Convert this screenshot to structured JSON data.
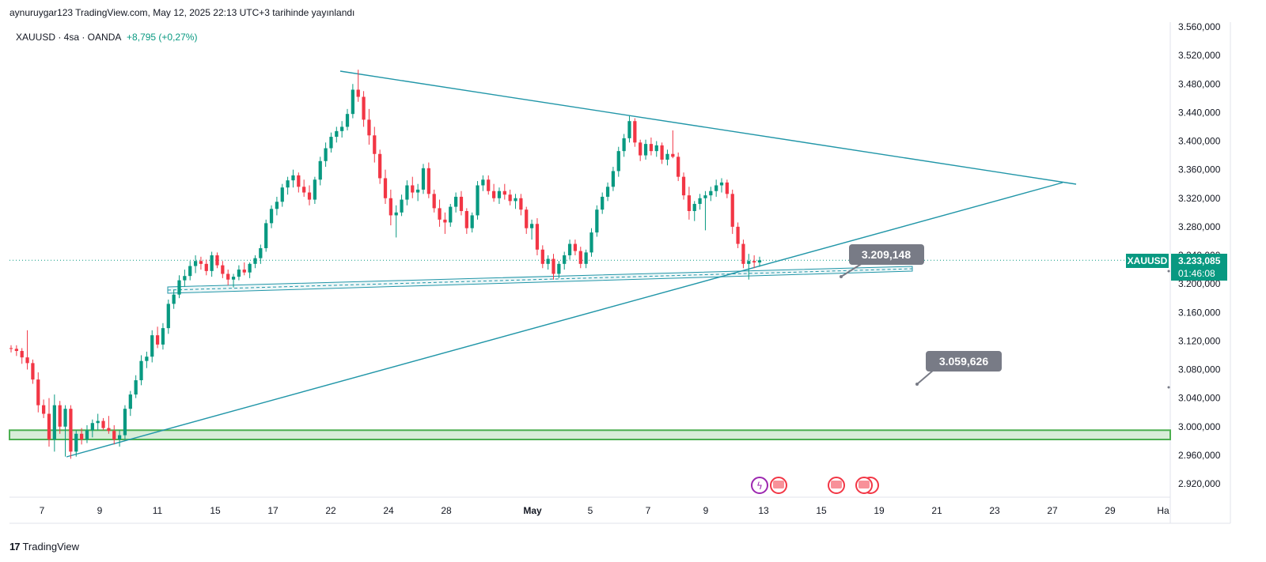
{
  "header": {
    "published_line": "aynuruygar123 TradingView.com, May 12, 2025 22:13 UTC+3 tarihinde yayınlandı",
    "symbol": "XAUUSD · 4sa · OANDA",
    "change": "+8,795 (+0,27%)"
  },
  "footer": {
    "logo_mark": "17",
    "logo_text": "TradingView"
  },
  "colors": {
    "up": "#089981",
    "down": "#f23645",
    "trendline": "#2196a8",
    "band": "#4caf50",
    "callout": "#787b86",
    "price_tag": "#089981"
  },
  "chart_data": {
    "type": "candlestick",
    "symbol": "XAUUSD",
    "timeframe": "4sa",
    "ylim": [
      2900,
      3570
    ],
    "y_ticks": [
      "3.560,000",
      "3.520,000",
      "3.480,000",
      "3.440,000",
      "3.400,000",
      "3.360,000",
      "3.320,000",
      "3.280,000",
      "3.240,000",
      "3.200,000",
      "3.160,000",
      "3.120,000",
      "3.080,000",
      "3.040,000",
      "3.000,000",
      "2.960,000",
      "2.920,000"
    ],
    "y_tick_values": [
      3560,
      3520,
      3480,
      3440,
      3400,
      3360,
      3320,
      3280,
      3240,
      3200,
      3160,
      3120,
      3080,
      3040,
      3000,
      2960,
      2920
    ],
    "x_ticks": [
      "7",
      "9",
      "11",
      "15",
      "17",
      "22",
      "24",
      "28",
      "May",
      "5",
      "7",
      "9",
      "13",
      "15",
      "19",
      "21",
      "23",
      "27",
      "29",
      "Ha"
    ],
    "current_price": {
      "symbol_tag": "XAUUSD",
      "price": "3.233,085",
      "countdown": "01:46:08",
      "value": 3233.085
    },
    "callouts": [
      {
        "label": "3.209,148",
        "value": 3209.148
      },
      {
        "label": "3.059,626",
        "value": 3059.626
      }
    ],
    "support_zone": [
      2982,
      2995
    ],
    "candles": [
      [
        3110,
        3114,
        3104,
        3109
      ],
      [
        3109,
        3114,
        3099,
        3106
      ],
      [
        3106,
        3110,
        3088,
        3097
      ],
      [
        3097,
        3135,
        3080,
        3089
      ],
      [
        3089,
        3094,
        3060,
        3066
      ],
      [
        3066,
        3076,
        3020,
        3030
      ],
      [
        3030,
        3038,
        3012,
        3018
      ],
      [
        3018,
        3040,
        2972,
        2982
      ],
      [
        2982,
        3045,
        2965,
        3030
      ],
      [
        3030,
        3036,
        2990,
        3000
      ],
      [
        3000,
        3030,
        2958,
        3025
      ],
      [
        3025,
        3030,
        2955,
        2965
      ],
      [
        2965,
        2995,
        2958,
        2990
      ],
      [
        2990,
        2998,
        2975,
        2982
      ],
      [
        2982,
        3002,
        2977,
        2995
      ],
      [
        2995,
        3010,
        2985,
        3005
      ],
      [
        3005,
        3018,
        2995,
        3008
      ],
      [
        3008,
        3012,
        2995,
        2998
      ],
      [
        2998,
        3015,
        2990,
        2994
      ],
      [
        2994,
        3002,
        2975,
        2982
      ],
      [
        2982,
        2995,
        2972,
        2988
      ],
      [
        2988,
        3030,
        2982,
        3025
      ],
      [
        3025,
        3050,
        3015,
        3045
      ],
      [
        3045,
        3072,
        3040,
        3065
      ],
      [
        3065,
        3100,
        3058,
        3092
      ],
      [
        3092,
        3105,
        3082,
        3098
      ],
      [
        3098,
        3135,
        3090,
        3128
      ],
      [
        3128,
        3140,
        3110,
        3115
      ],
      [
        3115,
        3145,
        3108,
        3138
      ],
      [
        3138,
        3178,
        3130,
        3172
      ],
      [
        3172,
        3192,
        3165,
        3185
      ],
      [
        3185,
        3212,
        3180,
        3205
      ],
      [
        3205,
        3220,
        3196,
        3211
      ],
      [
        3211,
        3232,
        3205,
        3225
      ],
      [
        3225,
        3240,
        3215,
        3232
      ],
      [
        3232,
        3238,
        3220,
        3228
      ],
      [
        3228,
        3234,
        3212,
        3218
      ],
      [
        3218,
        3245,
        3210,
        3240
      ],
      [
        3240,
        3244,
        3222,
        3226
      ],
      [
        3226,
        3232,
        3208,
        3214
      ],
      [
        3214,
        3220,
        3198,
        3206
      ],
      [
        3206,
        3214,
        3195,
        3210
      ],
      [
        3210,
        3226,
        3205,
        3220
      ],
      [
        3220,
        3230,
        3212,
        3216
      ],
      [
        3216,
        3230,
        3208,
        3228
      ],
      [
        3228,
        3240,
        3222,
        3236
      ],
      [
        3236,
        3255,
        3228,
        3250
      ],
      [
        3250,
        3290,
        3245,
        3285
      ],
      [
        3285,
        3310,
        3278,
        3305
      ],
      [
        3305,
        3322,
        3296,
        3315
      ],
      [
        3315,
        3340,
        3308,
        3335
      ],
      [
        3335,
        3350,
        3325,
        3345
      ],
      [
        3345,
        3360,
        3335,
        3352
      ],
      [
        3352,
        3356,
        3328,
        3336
      ],
      [
        3336,
        3346,
        3322,
        3328
      ],
      [
        3328,
        3338,
        3310,
        3318
      ],
      [
        3318,
        3350,
        3312,
        3346
      ],
      [
        3346,
        3378,
        3338,
        3372
      ],
      [
        3372,
        3398,
        3364,
        3390
      ],
      [
        3390,
        3412,
        3384,
        3406
      ],
      [
        3406,
        3420,
        3398,
        3414
      ],
      [
        3414,
        3428,
        3405,
        3420
      ],
      [
        3420,
        3445,
        3415,
        3438
      ],
      [
        3438,
        3480,
        3432,
        3472
      ],
      [
        3472,
        3500,
        3455,
        3462
      ],
      [
        3462,
        3470,
        3420,
        3430
      ],
      [
        3430,
        3445,
        3395,
        3408
      ],
      [
        3408,
        3420,
        3370,
        3382
      ],
      [
        3382,
        3388,
        3340,
        3348
      ],
      [
        3348,
        3360,
        3312,
        3320
      ],
      [
        3320,
        3332,
        3282,
        3296
      ],
      [
        3296,
        3310,
        3265,
        3300
      ],
      [
        3300,
        3325,
        3295,
        3318
      ],
      [
        3318,
        3345,
        3310,
        3338
      ],
      [
        3338,
        3350,
        3320,
        3328
      ],
      [
        3328,
        3340,
        3316,
        3332
      ],
      [
        3332,
        3368,
        3326,
        3362
      ],
      [
        3362,
        3370,
        3320,
        3326
      ],
      [
        3326,
        3332,
        3300,
        3306
      ],
      [
        3306,
        3318,
        3280,
        3290
      ],
      [
        3290,
        3300,
        3270,
        3286
      ],
      [
        3286,
        3312,
        3280,
        3308
      ],
      [
        3308,
        3328,
        3300,
        3322
      ],
      [
        3322,
        3330,
        3296,
        3302
      ],
      [
        3302,
        3306,
        3270,
        3278
      ],
      [
        3278,
        3300,
        3272,
        3296
      ],
      [
        3296,
        3344,
        3290,
        3338
      ],
      [
        3338,
        3352,
        3330,
        3346
      ],
      [
        3346,
        3352,
        3325,
        3330
      ],
      [
        3330,
        3340,
        3315,
        3320
      ],
      [
        3320,
        3335,
        3312,
        3330
      ],
      [
        3330,
        3340,
        3318,
        3325
      ],
      [
        3325,
        3332,
        3310,
        3316
      ],
      [
        3316,
        3326,
        3305,
        3320
      ],
      [
        3320,
        3326,
        3296,
        3304
      ],
      [
        3304,
        3308,
        3270,
        3278
      ],
      [
        3278,
        3290,
        3262,
        3284
      ],
      [
        3284,
        3292,
        3240,
        3248
      ],
      [
        3248,
        3254,
        3222,
        3228
      ],
      [
        3228,
        3240,
        3220,
        3235
      ],
      [
        3235,
        3242,
        3206,
        3214
      ],
      [
        3214,
        3232,
        3208,
        3228
      ],
      [
        3228,
        3245,
        3220,
        3240
      ],
      [
        3240,
        3262,
        3234,
        3256
      ],
      [
        3256,
        3262,
        3240,
        3246
      ],
      [
        3246,
        3252,
        3222,
        3228
      ],
      [
        3228,
        3248,
        3222,
        3244
      ],
      [
        3244,
        3278,
        3238,
        3272
      ],
      [
        3272,
        3310,
        3266,
        3304
      ],
      [
        3304,
        3328,
        3298,
        3322
      ],
      [
        3322,
        3342,
        3316,
        3336
      ],
      [
        3336,
        3364,
        3330,
        3358
      ],
      [
        3358,
        3392,
        3350,
        3386
      ],
      [
        3386,
        3410,
        3378,
        3404
      ],
      [
        3404,
        3435,
        3398,
        3428
      ],
      [
        3428,
        3432,
        3392,
        3398
      ],
      [
        3398,
        3402,
        3372,
        3380
      ],
      [
        3380,
        3402,
        3374,
        3396
      ],
      [
        3396,
        3405,
        3380,
        3386
      ],
      [
        3386,
        3400,
        3378,
        3394
      ],
      [
        3394,
        3398,
        3368,
        3374
      ],
      [
        3374,
        3388,
        3366,
        3382
      ],
      [
        3382,
        3415,
        3376,
        3378
      ],
      [
        3378,
        3384,
        3344,
        3350
      ],
      [
        3350,
        3356,
        3318,
        3324
      ],
      [
        3324,
        3336,
        3290,
        3302
      ],
      [
        3302,
        3316,
        3288,
        3312
      ],
      [
        3312,
        3326,
        3304,
        3320
      ],
      [
        3320,
        3330,
        3275,
        3324
      ],
      [
        3324,
        3336,
        3316,
        3330
      ],
      [
        3330,
        3346,
        3322,
        3338
      ],
      [
        3338,
        3348,
        3328,
        3342
      ],
      [
        3342,
        3346,
        3320,
        3326
      ],
      [
        3326,
        3332,
        3270,
        3280
      ],
      [
        3280,
        3286,
        3250,
        3256
      ],
      [
        3256,
        3262,
        3222,
        3228
      ],
      [
        3228,
        3242,
        3206,
        3232
      ],
      [
        3232,
        3240,
        3222,
        3230
      ],
      [
        3230,
        3238,
        3224,
        3233
      ]
    ]
  }
}
